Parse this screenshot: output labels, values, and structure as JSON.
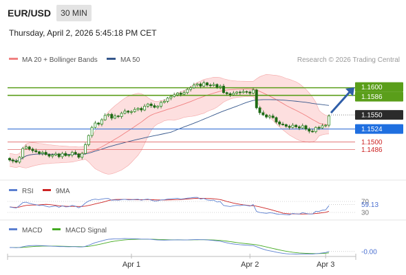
{
  "header": {
    "pair": "EUR/USD",
    "timeframe": "30 MIN",
    "datetime": "Thursday, April 2, 2026 5:45:18 PM CET"
  },
  "colors": {
    "candle": "#33a02c",
    "bollinger": "#f4a6a6",
    "bollinger_fill": "#fdd9d9",
    "ma20": "#f08080",
    "ma50": "#34568b",
    "resistance": "#5a9e1a",
    "support_blue": "#4a7fd8",
    "support_red": "#e06666",
    "arrow": "#2f5ea8",
    "rsi": "#5b7fd0",
    "rsi_ma": "#cc2222",
    "macd": "#5b7fd0",
    "macd_signal": "#44aa22"
  },
  "chart_data": {
    "type": "candlestick",
    "legend": {
      "ma20": "MA 20 + Bollinger Bands",
      "ma50": "MA 50",
      "copyright": "Research © 2026 Trading Central"
    },
    "ylim": [
      1.1445,
      1.1635
    ],
    "levels": [
      {
        "value": 1.16,
        "label": "1.1600",
        "style": "green"
      },
      {
        "value": 1.1586,
        "label": "1.1586",
        "style": "green"
      },
      {
        "value": 1.155,
        "label": "1.1550",
        "style": "current"
      },
      {
        "value": 1.1524,
        "label": "1.1524",
        "style": "blue"
      },
      {
        "value": 1.15,
        "label": "1.1500",
        "style": "red"
      },
      {
        "value": 1.1486,
        "label": "1.1486",
        "style": "red"
      }
    ],
    "x_ticks": [
      {
        "index": 37,
        "label": "Apr 1"
      },
      {
        "index": 73,
        "label": "Apr 2"
      },
      {
        "index": 96,
        "label": "Apr 3"
      }
    ],
    "closes": [
      1.1467,
      1.1465,
      1.1463,
      1.1472,
      1.1488,
      1.1491,
      1.1487,
      1.1484,
      1.1482,
      1.1479,
      1.1481,
      1.1477,
      1.1474,
      1.1476,
      1.1478,
      1.1473,
      1.1479,
      1.1475,
      1.1476,
      1.1481,
      1.1478,
      1.1472,
      1.1479,
      1.1495,
      1.1512,
      1.1527,
      1.1535,
      1.1533,
      1.1541,
      1.1549,
      1.1551,
      1.1544,
      1.1548,
      1.1547,
      1.1553,
      1.1557,
      1.1555,
      1.1556,
      1.156,
      1.1562,
      1.1559,
      1.1566,
      1.157,
      1.1567,
      1.1564,
      1.1566,
      1.1573,
      1.1575,
      1.1581,
      1.1584,
      1.1587,
      1.159,
      1.1588,
      1.1591,
      1.1597,
      1.16,
      1.1605,
      1.1607,
      1.1603,
      1.1609,
      1.1605,
      1.1604,
      1.1606,
      1.1601,
      1.1603,
      1.1591,
      1.1589,
      1.1587,
      1.159,
      1.1592,
      1.1591,
      1.1593,
      1.1592,
      1.159,
      1.1596,
      1.1563,
      1.1554,
      1.155,
      1.1546,
      1.1548,
      1.1545,
      1.1537,
      1.1533,
      1.1532,
      1.1529,
      1.1527,
      1.1531,
      1.1528,
      1.1526,
      1.153,
      1.1524,
      1.152,
      1.1519,
      1.1527,
      1.1526,
      1.153,
      1.1531,
      1.1548
    ],
    "macd_last_label": "-0.00",
    "rsi_last_label": "59.13",
    "rsi_levels": [
      {
        "value": 70,
        "label": "70"
      },
      {
        "value": 30,
        "label": "30"
      }
    ],
    "rsi_legend": "RSI",
    "rsi_ma_legend": "9MA",
    "macd_legend": "MACD",
    "macd_signal_legend": "MACD Signal"
  }
}
